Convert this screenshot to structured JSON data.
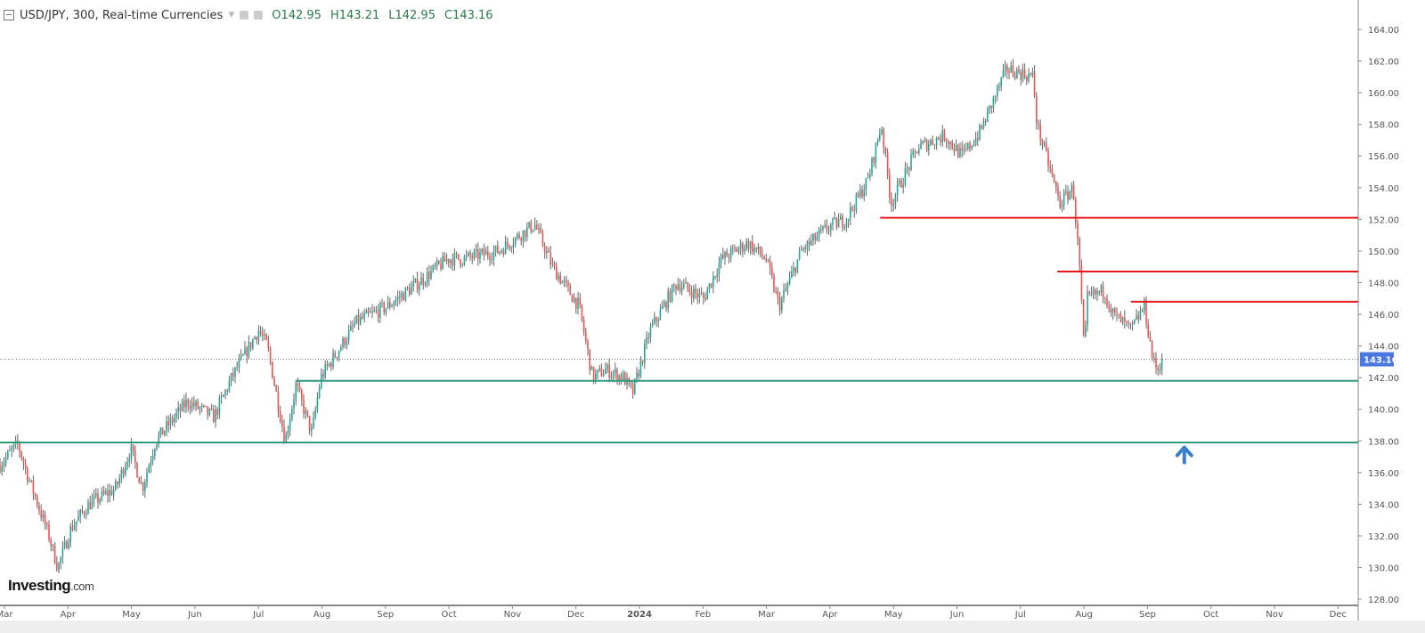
{
  "header": {
    "title": "USD/JPY, 300, Real-time Currencies",
    "open": "O142.95",
    "high": "H143.21",
    "low": "L142.95",
    "close": "C143.16"
  },
  "logo": {
    "main": "Investing",
    "suffix": ".com"
  },
  "colors": {
    "up": "#26a69a",
    "down": "#ef5350",
    "support": "#2e9b7d",
    "resistance": "#e8151b",
    "price_tag": "#4a78e0",
    "arrow": "#3a80c8"
  },
  "chart_data": {
    "type": "candlestick",
    "title": "USD/JPY, 300, Real-time Currencies",
    "x_unit": "months since Mar 2023",
    "xlim": [
      -0.07,
      21.3
    ],
    "ylim": [
      127.8,
      165.5
    ],
    "y_ticks": [
      "128.00",
      "130.00",
      "132.00",
      "134.00",
      "136.00",
      "138.00",
      "140.00",
      "142.00",
      "144.00",
      "146.00",
      "148.00",
      "150.00",
      "152.00",
      "154.00",
      "156.00",
      "158.00",
      "160.00",
      "162.00",
      "164.00"
    ],
    "x_ticks": [
      "Mar",
      "Apr",
      "May",
      "Jun",
      "Jul",
      "Aug",
      "Sep",
      "Oct",
      "Nov",
      "Dec",
      "2024",
      "Feb",
      "Mar",
      "Apr",
      "May",
      "Jun",
      "Jul",
      "Aug",
      "Sep",
      "Oct",
      "Nov",
      "Dec"
    ],
    "path": [
      [
        -0.07,
        136.5
      ],
      [
        0.21,
        137.8
      ],
      [
        0.35,
        136
      ],
      [
        0.7,
        132
      ],
      [
        0.84,
        130
      ],
      [
        1.05,
        132.5
      ],
      [
        1.33,
        134
      ],
      [
        1.75,
        135
      ],
      [
        1.99,
        137.5
      ],
      [
        2.17,
        135
      ],
      [
        2.38,
        138
      ],
      [
        2.88,
        140.5
      ],
      [
        3.3,
        139.5
      ],
      [
        3.58,
        142
      ],
      [
        4.0,
        145
      ],
      [
        4.14,
        144
      ],
      [
        4.42,
        138
      ],
      [
        4.59,
        141.5
      ],
      [
        4.84,
        138.5
      ],
      [
        4.98,
        142
      ],
      [
        5.54,
        145.5
      ],
      [
        6.03,
        146.5
      ],
      [
        6.52,
        148
      ],
      [
        6.98,
        149.5
      ],
      [
        7.22,
        149.5
      ],
      [
        7.78,
        150
      ],
      [
        8.35,
        151.7
      ],
      [
        8.63,
        149
      ],
      [
        9.05,
        146.5
      ],
      [
        9.26,
        142
      ],
      [
        9.47,
        142.5
      ],
      [
        9.75,
        142
      ],
      [
        9.89,
        141
      ],
      [
        10.17,
        145
      ],
      [
        10.59,
        148
      ],
      [
        11.01,
        147
      ],
      [
        11.29,
        149.5
      ],
      [
        11.71,
        150.5
      ],
      [
        11.99,
        149.5
      ],
      [
        12.2,
        146.5
      ],
      [
        12.55,
        150
      ],
      [
        12.97,
        151.5
      ],
      [
        13.25,
        152
      ],
      [
        13.6,
        154.5
      ],
      [
        13.81,
        158
      ],
      [
        13.96,
        153
      ],
      [
        14.38,
        156.5
      ],
      [
        14.8,
        157.3
      ],
      [
        15.08,
        156
      ],
      [
        15.36,
        157.5
      ],
      [
        15.78,
        161.5
      ],
      [
        16.2,
        161
      ],
      [
        16.26,
        158
      ],
      [
        16.62,
        153
      ],
      [
        16.83,
        154
      ],
      [
        16.93,
        149
      ],
      [
        17.01,
        143
      ],
      [
        17.04,
        147
      ],
      [
        17.32,
        147.5
      ],
      [
        17.46,
        146
      ],
      [
        17.6,
        145.5
      ],
      [
        17.74,
        145
      ],
      [
        17.95,
        146.5
      ],
      [
        18.09,
        143
      ],
      [
        18.16,
        142.5
      ],
      [
        18.23,
        143.16
      ]
    ],
    "last_price": "143.16",
    "horizontal_lines": [
      {
        "kind": "resistance",
        "price": 152.1,
        "from": 13.79
      },
      {
        "kind": "resistance",
        "price": 148.7,
        "from": 16.58
      },
      {
        "kind": "resistance",
        "price": 146.8,
        "from": 17.74
      },
      {
        "kind": "support",
        "price": 141.8,
        "from": 4.59
      },
      {
        "kind": "support",
        "price": 137.9,
        "from": -0.07
      }
    ],
    "annotations": [
      {
        "type": "up-arrow",
        "t": 18.58,
        "price": 137.2
      }
    ]
  }
}
